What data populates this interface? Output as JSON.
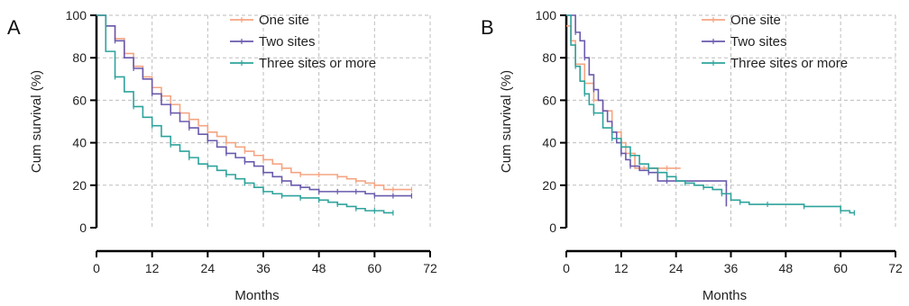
{
  "chart_data": [
    {
      "panel_label": "A",
      "type": "line",
      "step": true,
      "xlabel": "Months",
      "ylabel": "Cum survival (%)",
      "xlim": [
        0,
        72
      ],
      "ylim": [
        0,
        100
      ],
      "xticks": [
        0,
        12,
        24,
        36,
        48,
        60,
        72
      ],
      "yticks": [
        0,
        20,
        40,
        60,
        80,
        100
      ],
      "grid": true,
      "legend_position": "top-right",
      "series": [
        {
          "name": "One site",
          "color": "#f4a582",
          "x": [
            0,
            2,
            4,
            6,
            8,
            10,
            12,
            14,
            16,
            18,
            20,
            22,
            24,
            26,
            28,
            30,
            32,
            34,
            36,
            38,
            40,
            42,
            44,
            46,
            48,
            50,
            52,
            54,
            56,
            58,
            60,
            62,
            64,
            66,
            68
          ],
          "y": [
            100,
            95,
            89,
            82,
            76,
            71,
            66,
            62,
            58,
            54,
            51,
            48,
            45,
            43,
            40,
            38,
            36,
            34,
            32,
            30,
            28,
            26,
            25,
            25,
            25,
            25,
            24,
            23,
            22,
            21,
            20,
            18,
            18,
            18,
            18
          ]
        },
        {
          "name": "Two sites",
          "color": "#6a5aad",
          "x": [
            0,
            2,
            4,
            6,
            8,
            10,
            12,
            14,
            16,
            18,
            20,
            22,
            24,
            26,
            28,
            30,
            32,
            34,
            36,
            38,
            40,
            42,
            44,
            46,
            48,
            50,
            52,
            54,
            56,
            58,
            60,
            62,
            64,
            66,
            68
          ],
          "y": [
            100,
            95,
            88,
            80,
            75,
            70,
            63,
            58,
            54,
            50,
            47,
            44,
            41,
            38,
            35,
            33,
            31,
            29,
            26,
            24,
            22,
            20,
            19,
            18,
            17,
            17,
            17,
            17,
            17,
            16,
            15,
            15,
            15,
            15,
            15
          ]
        },
        {
          "name": "Three sites or more",
          "color": "#2ea39c",
          "x": [
            0,
            2,
            4,
            6,
            8,
            10,
            12,
            14,
            16,
            18,
            20,
            22,
            24,
            26,
            28,
            30,
            32,
            34,
            36,
            38,
            40,
            42,
            44,
            46,
            48,
            50,
            52,
            54,
            56,
            58,
            60,
            62,
            64
          ],
          "y": [
            100,
            83,
            71,
            64,
            57,
            52,
            48,
            43,
            39,
            36,
            33,
            30,
            29,
            27,
            25,
            23,
            21,
            19,
            17,
            16,
            15,
            15,
            14,
            14,
            13,
            12,
            11,
            10,
            9,
            8,
            8,
            7,
            7
          ]
        }
      ]
    },
    {
      "panel_label": "B",
      "type": "line",
      "step": true,
      "xlabel": "Months",
      "ylabel": "Cum survival (%)",
      "xlim": [
        0,
        72
      ],
      "ylim": [
        0,
        100
      ],
      "xticks": [
        0,
        12,
        24,
        36,
        48,
        60,
        72
      ],
      "yticks": [
        0,
        20,
        40,
        60,
        80,
        100
      ],
      "grid": true,
      "legend_position": "top-right",
      "series": [
        {
          "name": "One site",
          "color": "#f4a582",
          "x": [
            0,
            1,
            2,
            4,
            6,
            8,
            10,
            12,
            13,
            15,
            17,
            20,
            22,
            25
          ],
          "y": [
            95,
            88,
            77,
            68,
            60,
            55,
            45,
            40,
            35,
            28,
            28,
            28,
            28,
            28
          ]
        },
        {
          "name": "Two sites",
          "color": "#6a5aad",
          "x": [
            0,
            1,
            2,
            3,
            4,
            5,
            6,
            7,
            8,
            9,
            10,
            11,
            12,
            13,
            14,
            16,
            18,
            20,
            22,
            35
          ],
          "y": [
            100,
            100,
            92,
            88,
            80,
            72,
            65,
            60,
            55,
            50,
            45,
            40,
            35,
            32,
            29,
            27,
            26,
            22,
            22,
            10
          ]
        },
        {
          "name": "Three sites or more",
          "color": "#2ea39c",
          "x": [
            0,
            1,
            2,
            3,
            4,
            5,
            6,
            8,
            10,
            12,
            14,
            16,
            18,
            20,
            22,
            24,
            26,
            28,
            30,
            32,
            34,
            36,
            38,
            40,
            44,
            48,
            52,
            56,
            60,
            62,
            63
          ],
          "y": [
            100,
            86,
            76,
            69,
            63,
            58,
            54,
            47,
            42,
            38,
            34,
            30,
            28,
            26,
            24,
            22,
            21,
            20,
            19,
            18,
            16,
            13,
            12,
            11,
            11,
            11,
            10,
            10,
            8,
            7,
            7
          ]
        }
      ]
    }
  ]
}
